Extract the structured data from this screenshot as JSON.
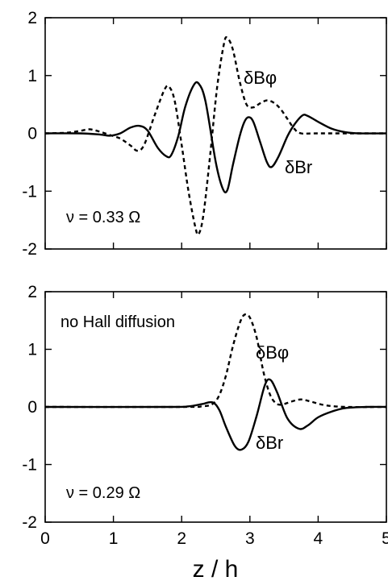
{
  "chart_data": [
    {
      "type": "line",
      "xlim": [
        0,
        5
      ],
      "ylim": [
        -2,
        2
      ],
      "xticks": [
        "0",
        "1",
        "2",
        "3",
        "4",
        "5"
      ],
      "yticks": [
        "2",
        "1",
        "0",
        "-1",
        "-2"
      ],
      "annotation": "ν = 0.33 Ω",
      "series": [
        {
          "name": "δBφ",
          "style": "dashed",
          "points": [
            [
              0,
              0
            ],
            [
              0.3,
              0.01
            ],
            [
              0.5,
              0.04
            ],
            [
              0.65,
              0.07
            ],
            [
              0.8,
              0.03
            ],
            [
              0.95,
              -0.03
            ],
            [
              1.1,
              -0.09
            ],
            [
              1.25,
              -0.21
            ],
            [
              1.35,
              -0.3
            ],
            [
              1.45,
              -0.2
            ],
            [
              1.6,
              0.3
            ],
            [
              1.75,
              0.76
            ],
            [
              1.82,
              0.8
            ],
            [
              1.9,
              0.55
            ],
            [
              2.0,
              -0.2
            ],
            [
              2.1,
              -1.0
            ],
            [
              2.2,
              -1.62
            ],
            [
              2.25,
              -1.74
            ],
            [
              2.32,
              -1.4
            ],
            [
              2.42,
              -0.35
            ],
            [
              2.52,
              0.8
            ],
            [
              2.62,
              1.55
            ],
            [
              2.67,
              1.65
            ],
            [
              2.75,
              1.45
            ],
            [
              2.85,
              0.9
            ],
            [
              2.95,
              0.5
            ],
            [
              3.05,
              0.45
            ],
            [
              3.15,
              0.52
            ],
            [
              3.25,
              0.57
            ],
            [
              3.35,
              0.53
            ],
            [
              3.45,
              0.42
            ],
            [
              3.55,
              0.25
            ],
            [
              3.65,
              0.08
            ],
            [
              3.75,
              0.0
            ],
            [
              4.0,
              0.0
            ],
            [
              5.0,
              0.0
            ]
          ]
        },
        {
          "name": "δBr",
          "style": "solid",
          "points": [
            [
              0,
              0
            ],
            [
              0.5,
              0.0
            ],
            [
              0.8,
              -0.02
            ],
            [
              0.95,
              -0.04
            ],
            [
              1.1,
              0.0
            ],
            [
              1.25,
              0.1
            ],
            [
              1.38,
              0.13
            ],
            [
              1.5,
              0.05
            ],
            [
              1.65,
              -0.25
            ],
            [
              1.78,
              -0.4
            ],
            [
              1.85,
              -0.37
            ],
            [
              1.95,
              -0.05
            ],
            [
              2.05,
              0.45
            ],
            [
              2.17,
              0.82
            ],
            [
              2.25,
              0.86
            ],
            [
              2.35,
              0.55
            ],
            [
              2.5,
              -0.5
            ],
            [
              2.6,
              -0.95
            ],
            [
              2.67,
              -0.98
            ],
            [
              2.75,
              -0.55
            ],
            [
              2.85,
              -0.05
            ],
            [
              2.92,
              0.2
            ],
            [
              2.98,
              0.28
            ],
            [
              3.05,
              0.2
            ],
            [
              3.15,
              -0.15
            ],
            [
              3.25,
              -0.5
            ],
            [
              3.32,
              -0.58
            ],
            [
              3.42,
              -0.4
            ],
            [
              3.55,
              -0.05
            ],
            [
              3.65,
              0.15
            ],
            [
              3.77,
              0.31
            ],
            [
              3.85,
              0.3
            ],
            [
              4.0,
              0.2
            ],
            [
              4.2,
              0.08
            ],
            [
              4.4,
              0.02
            ],
            [
              4.6,
              0.0
            ],
            [
              5.0,
              0.0
            ]
          ]
        }
      ]
    },
    {
      "type": "line",
      "xlim": [
        0,
        5
      ],
      "ylim": [
        -2,
        2
      ],
      "xticks": [
        "0",
        "1",
        "2",
        "3",
        "4",
        "5"
      ],
      "yticks": [
        "2",
        "1",
        "0",
        "-1",
        "-2"
      ],
      "annotation": "ν = 0.29 Ω",
      "annotation2": "no Hall diffusion",
      "xlabel": "z / h",
      "series": [
        {
          "name": "δBφ",
          "style": "dashed",
          "points": [
            [
              0,
              0
            ],
            [
              2.0,
              0.0
            ],
            [
              2.3,
              0.01
            ],
            [
              2.45,
              0.05
            ],
            [
              2.55,
              0.2
            ],
            [
              2.65,
              0.55
            ],
            [
              2.75,
              1.05
            ],
            [
              2.85,
              1.45
            ],
            [
              2.92,
              1.6
            ],
            [
              3.0,
              1.55
            ],
            [
              3.1,
              1.2
            ],
            [
              3.2,
              0.6
            ],
            [
              3.3,
              0.2
            ],
            [
              3.4,
              0.05
            ],
            [
              3.5,
              0.05
            ],
            [
              3.6,
              0.09
            ],
            [
              3.75,
              0.13
            ],
            [
              3.9,
              0.09
            ],
            [
              4.1,
              0.03
            ],
            [
              4.4,
              0.0
            ],
            [
              5.0,
              0.0
            ]
          ]
        },
        {
          "name": "δBr",
          "style": "solid",
          "points": [
            [
              0,
              0
            ],
            [
              1.8,
              0.0
            ],
            [
              2.1,
              0.01
            ],
            [
              2.3,
              0.05
            ],
            [
              2.45,
              0.08
            ],
            [
              2.55,
              -0.05
            ],
            [
              2.65,
              -0.35
            ],
            [
              2.78,
              -0.68
            ],
            [
              2.88,
              -0.74
            ],
            [
              2.98,
              -0.6
            ],
            [
              3.1,
              -0.15
            ],
            [
              3.22,
              0.38
            ],
            [
              3.3,
              0.47
            ],
            [
              3.4,
              0.25
            ],
            [
              3.55,
              -0.2
            ],
            [
              3.72,
              -0.38
            ],
            [
              3.85,
              -0.32
            ],
            [
              4.0,
              -0.18
            ],
            [
              4.2,
              -0.08
            ],
            [
              4.4,
              -0.02
            ],
            [
              4.7,
              0.0
            ],
            [
              5.0,
              0.0
            ]
          ]
        }
      ]
    }
  ]
}
